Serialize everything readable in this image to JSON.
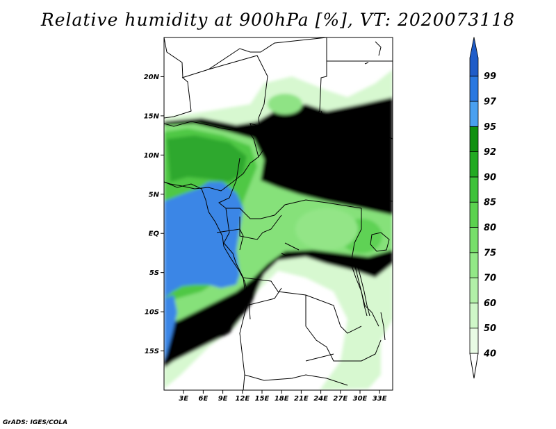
{
  "title": "Relative humidity at 900hPa [%], VT: 2020073118",
  "credit": "GrADS: IGES/COLA",
  "map": {
    "lon_range": [
      0,
      35
    ],
    "lat_range": [
      -20,
      25
    ],
    "lat_ticks": [
      {
        "value": 20,
        "label": "20N"
      },
      {
        "value": 15,
        "label": "15N"
      },
      {
        "value": 10,
        "label": "10N"
      },
      {
        "value": 5,
        "label": "5N"
      },
      {
        "value": 0,
        "label": "EQ"
      },
      {
        "value": -5,
        "label": "5S"
      },
      {
        "value": -10,
        "label": "10S"
      },
      {
        "value": -15,
        "label": "15S"
      }
    ],
    "lon_ticks": [
      {
        "value": 3,
        "label": "3E"
      },
      {
        "value": 6,
        "label": "6E"
      },
      {
        "value": 9,
        "label": "9E"
      },
      {
        "value": 12,
        "label": "12E"
      },
      {
        "value": 15,
        "label": "15E"
      },
      {
        "value": 18,
        "label": "18E"
      },
      {
        "value": 21,
        "label": "21E"
      },
      {
        "value": 24,
        "label": "24E"
      },
      {
        "value": 27,
        "label": "27E"
      },
      {
        "value": 30,
        "label": "30E"
      },
      {
        "value": 33,
        "label": "33E"
      }
    ]
  },
  "colorbar": {
    "levels": [
      {
        "label": "40",
        "color": "#e8fbe4"
      },
      {
        "label": "50",
        "color": "#cff7c8"
      },
      {
        "label": "60",
        "color": "#b2f0a8"
      },
      {
        "label": "70",
        "color": "#93e887"
      },
      {
        "label": "75",
        "color": "#78df6b"
      },
      {
        "label": "80",
        "color": "#5cd24f"
      },
      {
        "label": "85",
        "color": "#3ec23a"
      },
      {
        "label": "90",
        "color": "#22aa22"
      },
      {
        "label": "92",
        "color": "#109010"
      },
      {
        "label": "95",
        "color": "#4aa0f0"
      },
      {
        "label": "97",
        "color": "#2a78e0"
      },
      {
        "label": "99",
        "color": "#1f5cc8"
      }
    ]
  },
  "colors": {
    "blue": "#2f7de3",
    "green_dark": "#2aa62a",
    "green_mid": "#56cf49",
    "green_light": "#9de693",
    "green_pale": "#cdf6c6",
    "border": "#000000"
  }
}
